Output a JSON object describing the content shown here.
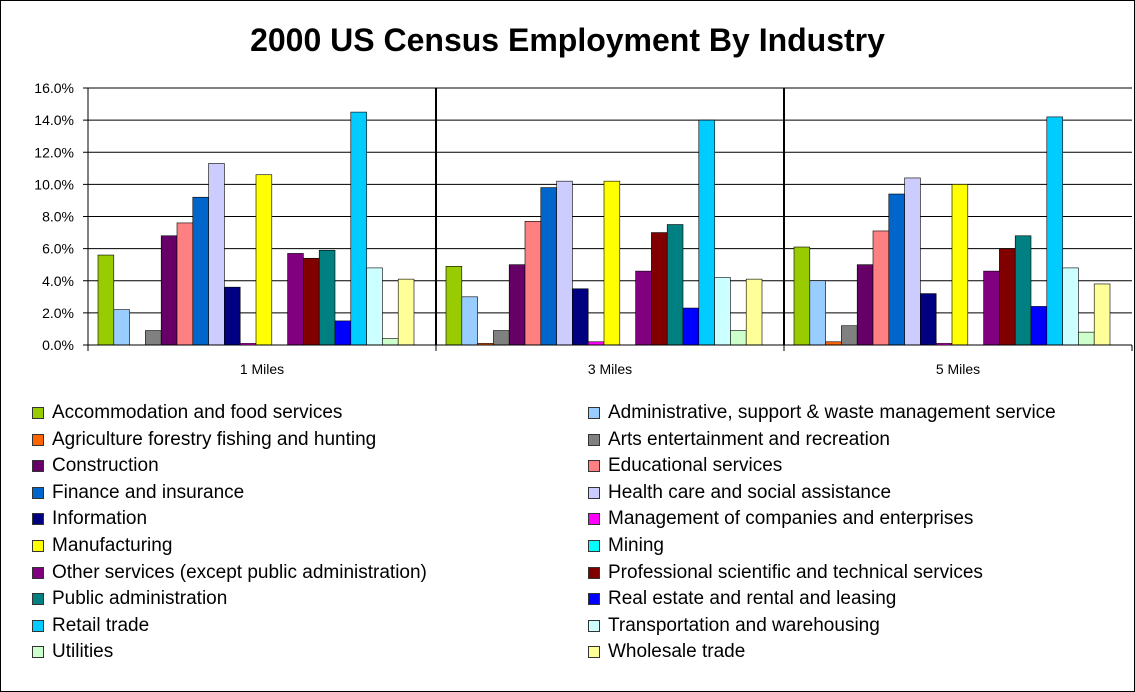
{
  "chart_data": {
    "type": "bar",
    "title": "2000 US Census Employment By Industry",
    "categories": [
      "1 Miles",
      "3 Miles",
      "5 Miles"
    ],
    "ylim": [
      0,
      16
    ],
    "yticks": [
      "0.0%",
      "2.0%",
      "4.0%",
      "6.0%",
      "8.0%",
      "10.0%",
      "12.0%",
      "14.0%",
      "16.0%"
    ],
    "grid": true,
    "legend_position": "bottom",
    "series": [
      {
        "name": "Accommodation and food services",
        "color": "#99CC00",
        "values": [
          5.6,
          4.9,
          6.1
        ]
      },
      {
        "name": "Administrative, support & waste management service",
        "color": "#99CCFF",
        "values": [
          2.2,
          3.0,
          4.0
        ]
      },
      {
        "name": "Agriculture forestry fishing and hunting",
        "color": "#FF6600",
        "values": [
          0.0,
          0.1,
          0.2
        ]
      },
      {
        "name": "Arts entertainment and recreation",
        "color": "#808080",
        "values": [
          0.9,
          0.9,
          1.2
        ]
      },
      {
        "name": "Construction",
        "color": "#660066",
        "values": [
          6.8,
          5.0,
          5.0
        ]
      },
      {
        "name": "Educational services",
        "color": "#FF8080",
        "values": [
          7.6,
          7.7,
          7.1
        ]
      },
      {
        "name": "Finance and insurance",
        "color": "#0066CC",
        "values": [
          9.2,
          9.8,
          9.4
        ]
      },
      {
        "name": "Health care and social assistance",
        "color": "#CCCCFF",
        "values": [
          11.3,
          10.2,
          10.4
        ]
      },
      {
        "name": "Information",
        "color": "#000080",
        "values": [
          3.6,
          3.5,
          3.2
        ]
      },
      {
        "name": "Management of companies and enterprises",
        "color": "#FF00FF",
        "values": [
          0.1,
          0.2,
          0.1
        ]
      },
      {
        "name": "Manufacturing",
        "color": "#FFFF00",
        "values": [
          10.6,
          10.2,
          10.0
        ]
      },
      {
        "name": "Mining",
        "color": "#00FFFF",
        "values": [
          0.0,
          0.0,
          0.0
        ]
      },
      {
        "name": "Other services (except public administration)",
        "color": "#800080",
        "values": [
          5.7,
          4.6,
          4.6
        ]
      },
      {
        "name": "Professional scientific and technical services",
        "color": "#800000",
        "values": [
          5.4,
          7.0,
          6.0
        ]
      },
      {
        "name": "Public administration",
        "color": "#008080",
        "values": [
          5.9,
          7.5,
          6.8
        ]
      },
      {
        "name": "Real estate and rental and leasing",
        "color": "#0000FF",
        "values": [
          1.5,
          2.3,
          2.4
        ]
      },
      {
        "name": "Retail trade",
        "color": "#00CCFF",
        "values": [
          14.5,
          14.0,
          14.2
        ]
      },
      {
        "name": "Transportation and warehousing",
        "color": "#CCFFFF",
        "values": [
          4.8,
          4.2,
          4.8
        ]
      },
      {
        "name": "Utilities",
        "color": "#CCFFCC",
        "values": [
          0.4,
          0.9,
          0.8
        ]
      },
      {
        "name": "Wholesale trade",
        "color": "#FFFF99",
        "values": [
          4.1,
          4.1,
          3.8
        ]
      }
    ]
  }
}
